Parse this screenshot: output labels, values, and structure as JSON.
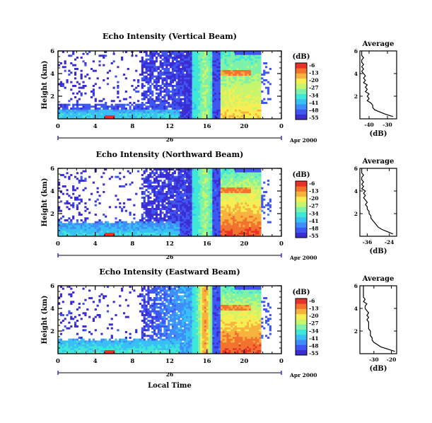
{
  "colors": {
    "scale": [
      "#3a2dd2",
      "#3f56f2",
      "#3f8dfa",
      "#38c0f5",
      "#3ee7d8",
      "#7df2a8",
      "#c6f56e",
      "#f6ee52",
      "#f8b23e",
      "#f3722e",
      "#e9312a"
    ]
  },
  "chart_data": [
    {
      "type": "heatmap",
      "title": "Echo Intensity (Vertical Beam)",
      "ylabel": "Height (km)",
      "xlabel": "",
      "x_ticks": [
        "0",
        "4",
        "8",
        "12",
        "16",
        "20",
        "0"
      ],
      "y_ticks": [
        "6",
        "4",
        "2"
      ],
      "date_mid_label": "26",
      "date_right_label": "Apr 2000",
      "xlim": [
        0,
        24
      ],
      "ylim": [
        0,
        6
      ]
    },
    {
      "type": "heatmap",
      "title": "Echo Intensity (Northward Beam)",
      "ylabel": "Height (km)",
      "xlabel": "",
      "x_ticks": [
        "0",
        "4",
        "8",
        "12",
        "16",
        "20",
        "0"
      ],
      "y_ticks": [
        "6",
        "4",
        "2"
      ],
      "date_mid_label": "26",
      "date_right_label": "Apr 2000",
      "xlim": [
        0,
        24
      ],
      "ylim": [
        0,
        6
      ]
    },
    {
      "type": "heatmap",
      "title": "Echo Intensity (Eastward Beam)",
      "ylabel": "Height (km)",
      "xlabel": "Local Time",
      "x_ticks": [
        "0",
        "4",
        "8",
        "12",
        "16",
        "20",
        "0"
      ],
      "y_ticks": [
        "6",
        "4",
        "2"
      ],
      "date_mid_label": "26",
      "date_right_label": "Apr 2000",
      "xlim": [
        0,
        24
      ],
      "ylim": [
        0,
        6
      ]
    }
  ],
  "colorbar": {
    "unit_label": "(dB)",
    "tick_labels": [
      "-6",
      "-13",
      "-20",
      "-27",
      "-34",
      "-41",
      "-48",
      "-55"
    ]
  },
  "profiles": [
    {
      "type": "line",
      "title": "Average",
      "xlabel": "(dB)",
      "x_ticks": [
        "-40",
        "-30"
      ],
      "y_ticks": [
        "6",
        "4",
        "2"
      ],
      "xlim": [
        -45,
        -25
      ],
      "ylim": [
        0,
        6
      ],
      "x": [
        -27,
        -31,
        -34,
        -37,
        -38,
        -38,
        -39,
        -41,
        -40,
        -41,
        -40,
        -42,
        -41,
        -42,
        -41,
        -43,
        -42,
        -43,
        -42,
        -43,
        -44,
        -43,
        -44,
        -43,
        -44,
        -44,
        -43,
        -44,
        -44,
        -44,
        -44
      ],
      "y": [
        0.2,
        0.4,
        0.6,
        0.8,
        1.0,
        1.2,
        1.4,
        1.6,
        1.8,
        2.0,
        2.2,
        2.4,
        2.6,
        2.8,
        3.0,
        3.2,
        3.4,
        3.6,
        3.8,
        4.0,
        4.2,
        4.4,
        4.6,
        4.8,
        5.0,
        5.2,
        5.4,
        5.6,
        5.8,
        5.9,
        6.0
      ]
    },
    {
      "type": "line",
      "title": "Average",
      "xlabel": "(dB)",
      "x_ticks": [
        "-36",
        "-24"
      ],
      "y_ticks": [
        "6",
        "4",
        "2"
      ],
      "xlim": [
        -40,
        -20
      ],
      "ylim": [
        0,
        6
      ],
      "x": [
        -22,
        -25,
        -28,
        -30,
        -31,
        -32,
        -33,
        -34,
        -34,
        -35,
        -35,
        -36,
        -36,
        -37,
        -36,
        -37,
        -38,
        -37,
        -38,
        -37,
        -39,
        -38,
        -39,
        -38,
        -39,
        -39,
        -38,
        -39,
        -39,
        -39,
        -39
      ],
      "y": [
        0.2,
        0.4,
        0.6,
        0.8,
        1.0,
        1.2,
        1.4,
        1.6,
        1.8,
        2.0,
        2.2,
        2.4,
        2.6,
        2.8,
        3.0,
        3.2,
        3.4,
        3.6,
        3.8,
        4.0,
        4.2,
        4.4,
        4.6,
        4.8,
        5.0,
        5.2,
        5.4,
        5.6,
        5.8,
        5.9,
        6.0
      ]
    },
    {
      "type": "line",
      "title": "Average",
      "xlabel": "(dB)",
      "x_ticks": [
        "-30",
        "-20"
      ],
      "y_ticks": [
        "6",
        "4",
        "2"
      ],
      "xlim": [
        -38,
        -17
      ],
      "ylim": [
        0,
        6
      ],
      "x": [
        -18,
        -22,
        -26,
        -28,
        -30,
        -31,
        -31,
        -32,
        -32,
        -32,
        -33,
        -33,
        -33,
        -33,
        -34,
        -33,
        -34,
        -33,
        -34,
        -35,
        -35,
        -34,
        -36,
        -35,
        -36,
        -36,
        -36,
        -36,
        -36,
        -36,
        -36
      ],
      "y": [
        0.2,
        0.4,
        0.6,
        0.8,
        1.0,
        1.2,
        1.4,
        1.6,
        1.8,
        2.0,
        2.2,
        2.4,
        2.6,
        2.8,
        3.0,
        3.2,
        3.4,
        3.6,
        3.8,
        4.0,
        4.2,
        4.4,
        4.6,
        4.8,
        5.0,
        5.2,
        5.4,
        5.6,
        5.8,
        5.9,
        6.0
      ]
    }
  ]
}
